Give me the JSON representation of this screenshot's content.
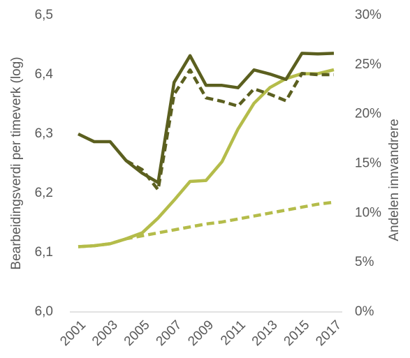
{
  "chart_data": {
    "type": "line",
    "y_label": "Bearbeidingsverdi per timeverk (log)",
    "y2_label": "Andelen innvandrere",
    "x": [
      2001,
      2002,
      2003,
      2004,
      2005,
      2006,
      2007,
      2008,
      2009,
      2010,
      2011,
      2012,
      2013,
      2014,
      2015,
      2016,
      2017
    ],
    "xlim": [
      2001,
      2017
    ],
    "xticks": [
      2001,
      2003,
      2005,
      2007,
      2009,
      2011,
      2013,
      2015,
      2017
    ],
    "ylim": [
      6.0,
      6.5
    ],
    "yticks": [
      {
        "value": 6.0,
        "label": "6,0"
      },
      {
        "value": 6.1,
        "label": "6,1"
      },
      {
        "value": 6.2,
        "label": "6,2"
      },
      {
        "value": 6.3,
        "label": "6,3"
      },
      {
        "value": 6.4,
        "label": "6,4"
      },
      {
        "value": 6.5,
        "label": "6,5"
      }
    ],
    "y2lim": [
      0,
      30
    ],
    "y2ticks": [
      {
        "value": 0,
        "label": "0%"
      },
      {
        "value": 5,
        "label": "5%"
      },
      {
        "value": 10,
        "label": "10%"
      },
      {
        "value": 15,
        "label": "15%"
      },
      {
        "value": 20,
        "label": "20%"
      },
      {
        "value": 25,
        "label": "25%"
      },
      {
        "value": 30,
        "label": "30%"
      }
    ],
    "series": [
      {
        "color": "#5b5f1f",
        "dashed": false,
        "values": [
          6.3,
          6.287,
          6.287,
          6.255,
          6.234,
          6.218,
          6.387,
          6.432,
          6.382,
          6.382,
          6.378,
          6.408,
          6.401,
          6.392,
          6.436,
          6.435,
          6.436
        ]
      },
      {
        "color": "#5b5f1f",
        "dashed": true,
        "values": [
          null,
          null,
          null,
          6.255,
          6.24,
          6.206,
          6.367,
          6.408,
          6.361,
          6.355,
          6.347,
          6.376,
          6.367,
          6.356,
          6.402,
          6.4,
          6.4
        ]
      },
      {
        "color": "#b4bc4a",
        "dashed": false,
        "axis": "y2",
        "values": [
          6.6,
          6.7,
          6.9,
          7.4,
          8.0,
          9.5,
          11.3,
          13.2,
          13.3,
          15.2,
          18.5,
          21.1,
          22.7,
          23.6,
          24.1,
          24.1,
          24.5
        ]
      },
      {
        "color": "#b4bc4a",
        "dashed": true,
        "axis": "y2",
        "values": [
          6.6,
          6.7,
          6.9,
          7.4,
          7.7,
          8.0,
          8.3,
          8.6,
          8.9,
          9.1,
          9.4,
          9.7,
          10.0,
          10.3,
          10.6,
          10.9,
          11.1
        ]
      }
    ]
  }
}
